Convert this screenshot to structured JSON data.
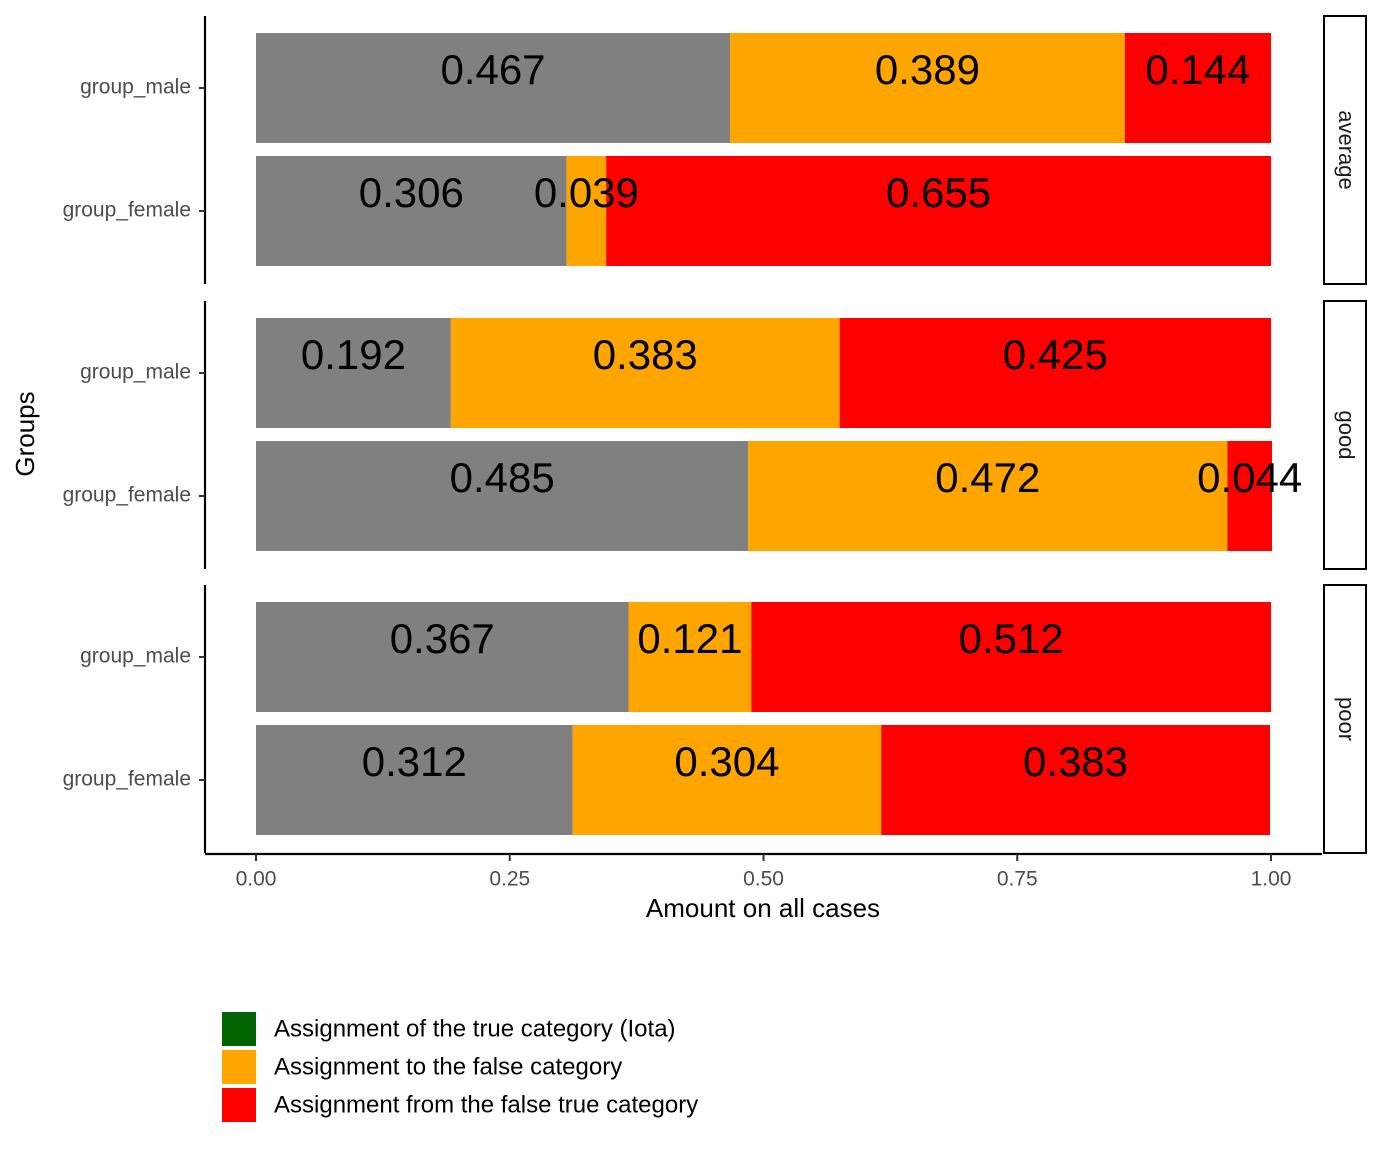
{
  "chart_data": {
    "type": "bar",
    "orientation": "horizontal",
    "stacked": true,
    "xlabel": "Amount on all cases",
    "ylabel": "Groups",
    "xlim": [
      0,
      1
    ],
    "x_ticks": [
      "0.00",
      "0.25",
      "0.50",
      "0.75",
      "1.00"
    ],
    "x_tick_values": [
      0,
      0.25,
      0.5,
      0.75,
      1.0
    ],
    "grid": false,
    "legend_position": "bottom-left",
    "colors": {
      "true_category": "#808080",
      "false_category": "#FFA500",
      "false_true_category": "#FF0000"
    },
    "panels": [
      {
        "strip": "average",
        "groups": [
          {
            "label": "group_male",
            "values": [
              0.467,
              0.389,
              0.144
            ],
            "labels": [
              "0.467",
              "0.389",
              "0.144"
            ]
          },
          {
            "label": "group_female",
            "values": [
              0.306,
              0.039,
              0.655
            ],
            "labels": [
              "0.306",
              "0.039",
              "0.655"
            ]
          }
        ]
      },
      {
        "strip": "good",
        "groups": [
          {
            "label": "group_male",
            "values": [
              0.192,
              0.383,
              0.425
            ],
            "labels": [
              "0.192",
              "0.383",
              "0.425"
            ]
          },
          {
            "label": "group_female",
            "values": [
              0.485,
              0.472,
              0.044
            ],
            "labels": [
              "0.485",
              "0.472",
              "0.044"
            ]
          }
        ]
      },
      {
        "strip": "poor",
        "groups": [
          {
            "label": "group_male",
            "values": [
              0.367,
              0.121,
              0.512
            ],
            "labels": [
              "0.367",
              "0.121",
              "0.512"
            ]
          },
          {
            "label": "group_female",
            "values": [
              0.312,
              0.304,
              0.383
            ],
            "labels": [
              "0.312",
              "0.304",
              "0.383"
            ]
          }
        ]
      }
    ],
    "legend": [
      {
        "label": "Assignment of the true category (Iota)",
        "color": "#006400"
      },
      {
        "label": "Assignment to the false category",
        "color": "#FFA500"
      },
      {
        "label": "Assignment from the false true category",
        "color": "#FF0000"
      }
    ]
  }
}
